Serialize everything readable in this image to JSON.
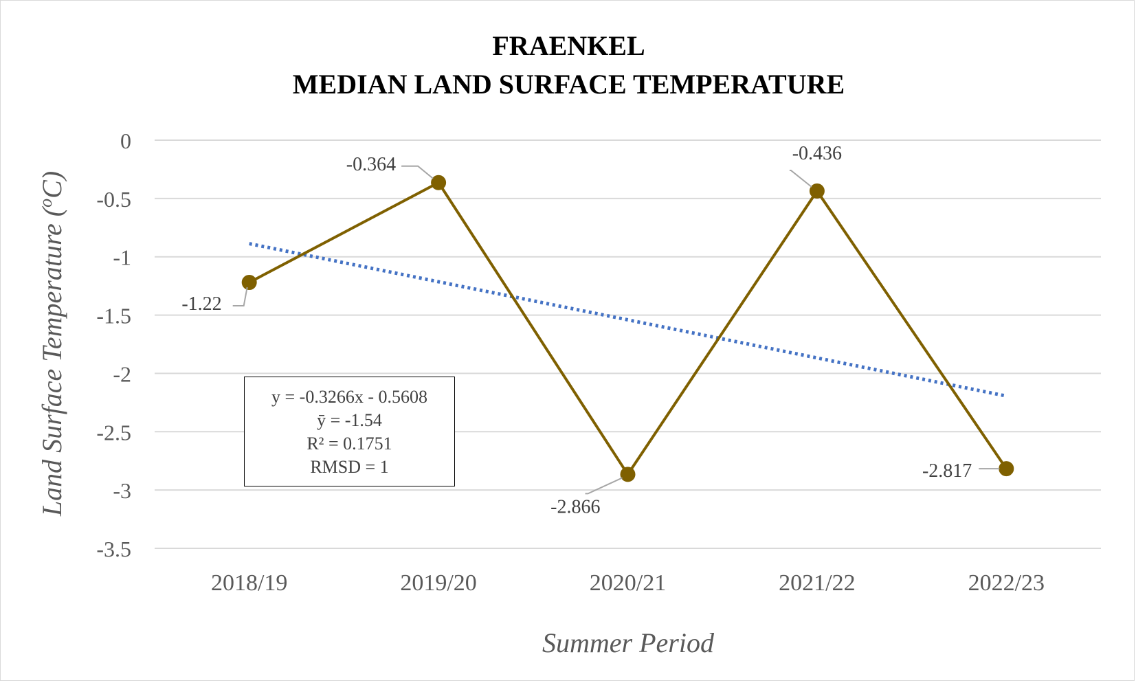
{
  "chart_data": {
    "type": "line",
    "title": [
      "FRAENKEL",
      "MEDIAN LAND SURFACE TEMPERATURE"
    ],
    "xlabel": "Summer Period",
    "ylabel": "Land Surface Temperature (",
    "ylabel_sup": "o",
    "ylabel_unit": "C)",
    "categories": [
      "2018/19",
      "2019/20",
      "2020/21",
      "2021/22",
      "2022/23"
    ],
    "series": [
      {
        "values": [
          -1.22,
          -0.364,
          -2.866,
          -0.436,
          -2.817
        ],
        "labels": [
          "-1.22",
          "-0.364",
          "-2.866",
          "-0.436",
          "-2.817"
        ],
        "color": "#7f6000",
        "marker": "circle"
      }
    ],
    "trendline": {
      "type": "linear",
      "slope": -0.3266,
      "intercept": -0.5608,
      "style": "dotted",
      "color": "#4472c4"
    },
    "ylim": [
      -3.5,
      0
    ],
    "yticks": [
      "0",
      "-0.5",
      "-1",
      "-1.5",
      "-2",
      "-2.5",
      "-3",
      "-3.5"
    ],
    "grid": true,
    "legend": "none",
    "annotations": {
      "stats": [
        "y = -0.3266x - 0.5608",
        "ȳ = -1.54",
        "R² = 0.1751",
        "RMSD = 1"
      ]
    }
  }
}
